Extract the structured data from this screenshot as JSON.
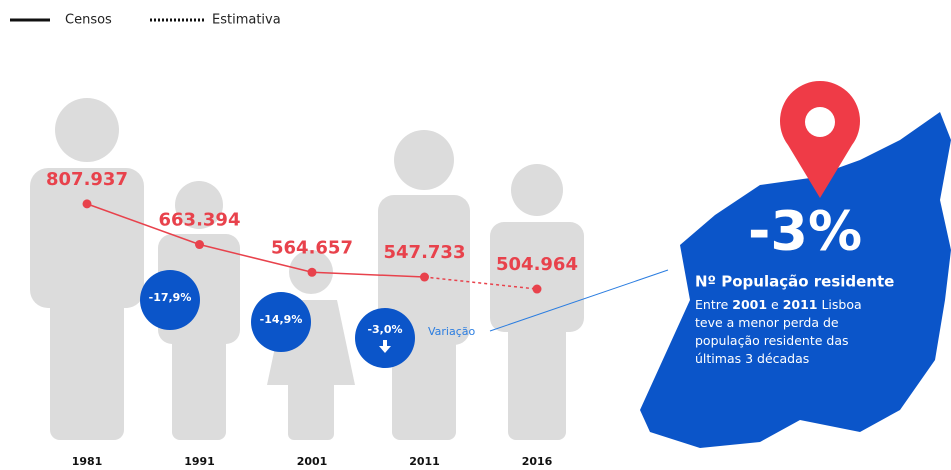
{
  "chart_data": {
    "type": "line",
    "categories": [
      "1981",
      "1991",
      "2001",
      "2011",
      "2016"
    ],
    "series": [
      {
        "name": "Censos",
        "color": "#e8424c",
        "style": "solid",
        "values": [
          807937,
          663394,
          564657,
          547733,
          null
        ],
        "value_labels": [
          "807.937",
          "663.394",
          "564.657",
          "547.733",
          null
        ]
      },
      {
        "name": "Estimativa",
        "color": "#e8424c",
        "style": "dotted",
        "values": [
          null,
          null,
          null,
          547733,
          504964
        ],
        "value_labels": [
          null,
          null,
          null,
          null,
          "504.964"
        ]
      }
    ],
    "ylim": [
      0,
      900000
    ],
    "variations": [
      "-17,9%",
      "-14,9%",
      "-3,0%"
    ],
    "variation_label": "Variação",
    "callout": {
      "value": "-3%",
      "title": "Nº População residente",
      "lines": [
        [
          "Entre ",
          "2001",
          " e ",
          "2011",
          " Lisboa"
        ],
        [
          "teve a menor perda de"
        ],
        [
          "população residente das"
        ],
        [
          "últimas 3 décadas"
        ]
      ]
    }
  }
}
